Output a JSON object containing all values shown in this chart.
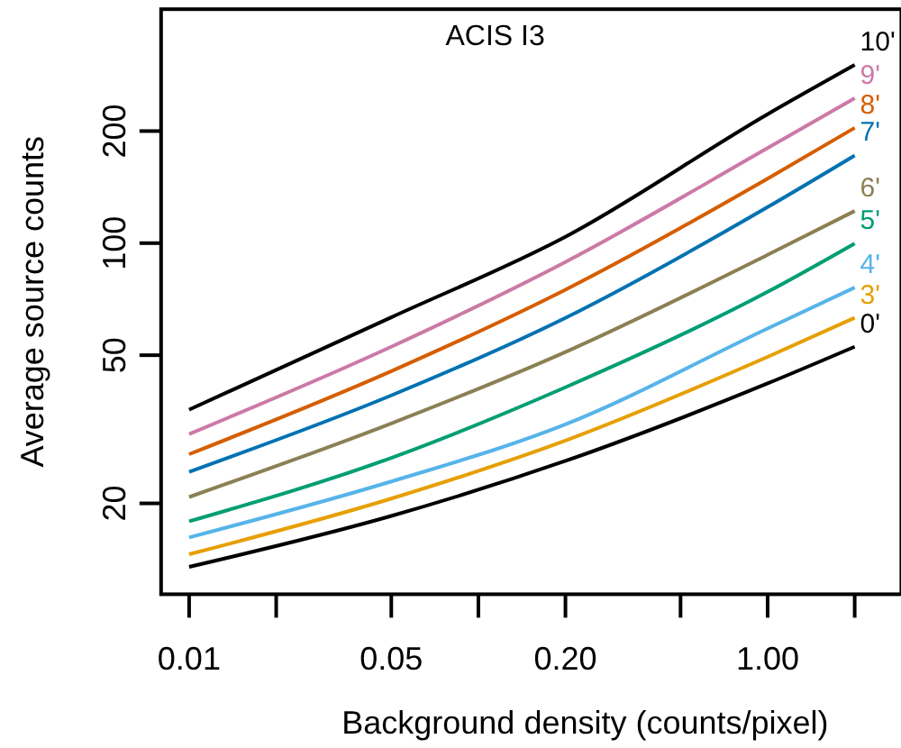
{
  "chart_data": {
    "type": "line",
    "title": "ACIS I3",
    "xlabel": "Background density (counts/pixel)",
    "ylabel": "Average source counts",
    "log": "xy",
    "grid": false,
    "marker": "none",
    "line_style": "solid",
    "x": [
      0.01,
      0.05,
      0.2,
      1,
      2
    ],
    "xlim": [
      0.008,
      2.9
    ],
    "xticks": [
      0.01,
      {
        "value": 0.02,
        "label": null
      },
      "0.05",
      {
        "value": 0.1,
        "label": null
      },
      {
        "value": 0.2,
        "label": "0.20"
      },
      {
        "value": 0.5,
        "label": null
      },
      {
        "value": 1,
        "label": "1.00"
      },
      {
        "value": 2,
        "label": null
      }
    ],
    "ylim": [
      11.4,
      425
    ],
    "yticks": [
      20,
      50,
      100,
      200
    ],
    "series": [
      {
        "name": "0'",
        "color": "#000000",
        "values": [
          13.5,
          18.5,
          26,
          42,
          52.7
        ]
      },
      {
        "name": "3'",
        "color": "#e69f00",
        "values": [
          14.6,
          20.6,
          29.5,
          49.5,
          63
        ]
      },
      {
        "name": "4'",
        "color": "#56b4e9",
        "values": [
          16.2,
          22.9,
          32.6,
          59,
          76
        ]
      },
      {
        "name": "5'",
        "color": "#009e73",
        "values": [
          17.9,
          26.5,
          41,
          74,
          99.8
        ]
      },
      {
        "name": "6'",
        "color": "#8b8055",
        "values": [
          20.8,
          32.8,
          51,
          93,
          122
        ]
      },
      {
        "name": "7'",
        "color": "#0072b2",
        "values": [
          24.3,
          39,
          63,
          125,
          172
        ]
      },
      {
        "name": "8'",
        "color": "#d55e00",
        "values": [
          27.1,
          45.3,
          75,
          149,
          204
        ]
      },
      {
        "name": "9'",
        "color": "#cc79a7",
        "values": [
          30.7,
          52.7,
          89,
          180,
          245
        ]
      },
      {
        "name": "10'",
        "color": "#000000",
        "values": [
          35.7,
          63.2,
          104,
          222,
          301
        ]
      }
    ]
  }
}
